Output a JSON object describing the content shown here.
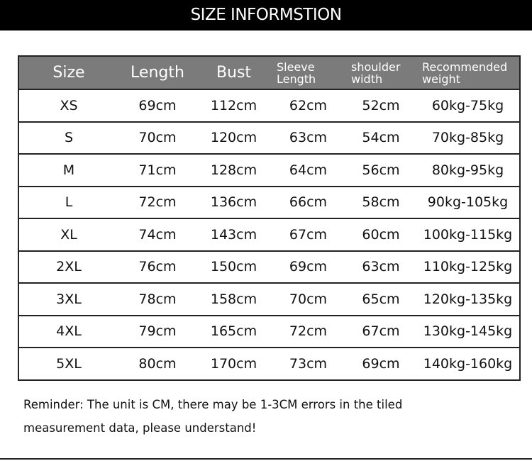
{
  "title": "SIZE INFORMSTION",
  "table": {
    "headers": [
      [
        "Size"
      ],
      [
        "Length"
      ],
      [
        "Bust"
      ],
      [
        "Sleeve",
        "Length"
      ],
      [
        "shoulder",
        "width"
      ],
      [
        "Recommended",
        "weight"
      ]
    ],
    "rows": [
      [
        "XS",
        "69cm",
        "112cm",
        "62cm",
        "52cm",
        "60kg-75kg"
      ],
      [
        "S",
        "70cm",
        "120cm",
        "63cm",
        "54cm",
        "70kg-85kg"
      ],
      [
        "M",
        "71cm",
        "128cm",
        "64cm",
        "56cm",
        "80kg-95kg"
      ],
      [
        "L",
        "72cm",
        "136cm",
        "66cm",
        "58cm",
        "90kg-105kg"
      ],
      [
        "XL",
        "74cm",
        "143cm",
        "67cm",
        "60cm",
        "100kg-115kg"
      ],
      [
        "2XL",
        "76cm",
        "150cm",
        "69cm",
        "63cm",
        "110kg-125kg"
      ],
      [
        "3XL",
        "78cm",
        "158cm",
        "70cm",
        "65cm",
        "120kg-135kg"
      ],
      [
        "4XL",
        "79cm",
        "165cm",
        "72cm",
        "67cm",
        "130kg-145kg"
      ],
      [
        "5XL",
        "80cm",
        "170cm",
        "73cm",
        "69cm",
        "140kg-160kg"
      ]
    ]
  },
  "reminder": [
    "Reminder: The unit is CM, there may be 1-3CM errors in the tiled",
    "measurement data, please understand!"
  ],
  "colors": {
    "header_bg": "#7b7b7b",
    "title_bg": "#000000"
  }
}
